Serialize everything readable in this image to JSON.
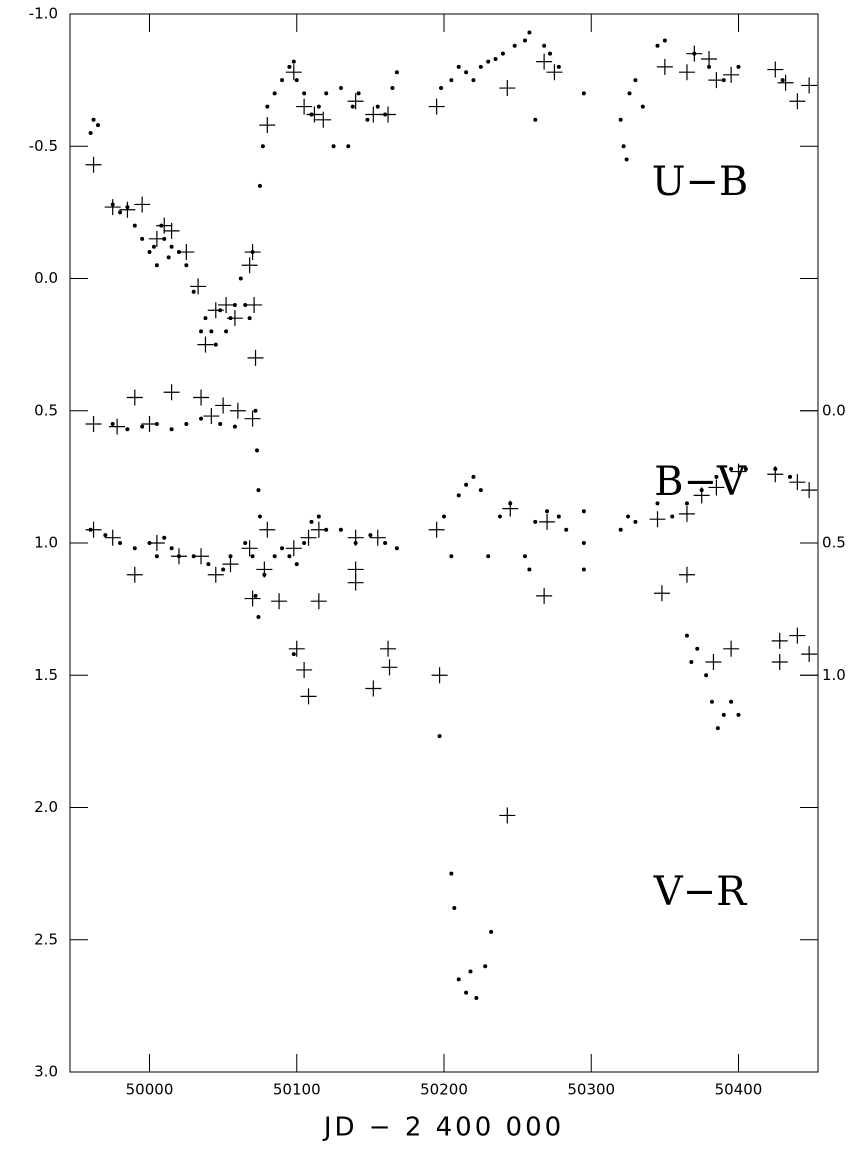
{
  "chart_data": {
    "type": "scatter",
    "xlabel": "JD − 2 400 000",
    "xlim": [
      49946,
      50454
    ],
    "xticks": [
      50000,
      50100,
      50200,
      50300,
      50400
    ],
    "ylim": [
      -1.0,
      3.0
    ],
    "inverted": true,
    "yticks": [
      {
        "value": -1.0,
        "label": "-1.0"
      },
      -0.5,
      {
        "value": 0,
        "label": "0.0"
      },
      0.5,
      {
        "value": 1,
        "label": "1.0"
      },
      1.5,
      {
        "value": 2,
        "label": "2.0"
      },
      2.5,
      {
        "value": 3,
        "label": "3.0"
      }
    ],
    "y2lim": [
      -1.5,
      2.5
    ],
    "y2ticks": [
      {
        "value": 0,
        "label": "0.0"
      },
      0.5,
      {
        "value": 1,
        "label": "1.0"
      }
    ],
    "color": "#000000",
    "series": [
      {
        "name": "U−B",
        "axis": "y",
        "dots": {
          "x": [
            49960,
            49962,
            49965,
            49975,
            49980,
            49985,
            49990,
            49995,
            50000,
            50003,
            50005,
            50008,
            50010,
            50013,
            50015,
            50020,
            50025,
            50030,
            50035,
            50038,
            50042,
            50045,
            50048,
            50052,
            50055,
            50058,
            50062,
            50065,
            50068,
            50070,
            50072,
            50073,
            50074,
            50075,
            50077,
            50080,
            50085,
            50090,
            50095,
            50098,
            50100,
            50105,
            50110,
            50115,
            50120,
            50125,
            50130,
            50135,
            50138,
            50142,
            50148,
            50155,
            50160,
            50165,
            50168,
            50198,
            50205,
            50210,
            50215,
            50220,
            50225,
            50230,
            50235,
            50240,
            50248,
            50255,
            50258,
            50262,
            50268,
            50272,
            50278,
            50295,
            50320,
            50322,
            50324,
            50326,
            50330,
            50335,
            50345,
            50350,
            50370,
            50380,
            50390,
            50400,
            50430
          ],
          "values": [
            -0.55,
            -0.6,
            -0.58,
            -0.28,
            -0.25,
            -0.27,
            -0.2,
            -0.15,
            -0.1,
            -0.12,
            -0.05,
            -0.2,
            -0.15,
            -0.08,
            -0.12,
            -0.1,
            -0.05,
            0.05,
            0.2,
            0.15,
            0.2,
            0.25,
            0.12,
            0.2,
            0.15,
            0.1,
            0.0,
            0.1,
            0.15,
            -0.1,
            0.5,
            0.65,
            0.8,
            -0.35,
            -0.5,
            -0.65,
            -0.7,
            -0.75,
            -0.8,
            -0.82,
            -0.75,
            -0.7,
            -0.62,
            -0.65,
            -0.7,
            -0.5,
            -0.72,
            -0.5,
            -0.65,
            -0.7,
            -0.6,
            -0.65,
            -0.62,
            -0.72,
            -0.78,
            -0.72,
            -0.75,
            -0.8,
            -0.78,
            -0.75,
            -0.8,
            -0.82,
            -0.83,
            -0.85,
            -0.88,
            -0.9,
            -0.93,
            -0.6,
            -0.88,
            -0.85,
            -0.8,
            -0.7,
            -0.6,
            -0.5,
            -0.45,
            -0.7,
            -0.75,
            -0.65,
            -0.88,
            -0.9,
            -0.85,
            -0.8,
            -0.75,
            -0.8,
            -0.75
          ]
        },
        "crosses": {
          "x": [
            49962,
            49975,
            49985,
            49995,
            50005,
            50010,
            50015,
            50025,
            50033,
            50038,
            50045,
            50052,
            50058,
            50068,
            50070,
            50071,
            50072,
            50080,
            50098,
            50105,
            50112,
            50118,
            50140,
            50152,
            50162,
            50195,
            50243,
            50268,
            50275,
            50350,
            50365,
            50370,
            50380,
            50385,
            50395,
            50425,
            50432,
            50440,
            50448
          ],
          "values": [
            -0.43,
            -0.27,
            -0.26,
            -0.28,
            -0.15,
            -0.2,
            -0.18,
            -0.1,
            0.03,
            0.25,
            0.12,
            0.1,
            0.15,
            -0.05,
            -0.1,
            0.1,
            0.3,
            -0.58,
            -0.78,
            -0.65,
            -0.62,
            -0.6,
            -0.67,
            -0.62,
            -0.62,
            -0.65,
            -0.72,
            -0.82,
            -0.78,
            -0.8,
            -0.78,
            -0.85,
            -0.83,
            -0.75,
            -0.77,
            -0.79,
            -0.74,
            -0.67,
            -0.73
          ]
        }
      },
      {
        "name": "B−V",
        "axis": "y2",
        "dots": {
          "x": [
            49960,
            49970,
            49980,
            49990,
            50000,
            50005,
            50010,
            50015,
            50020,
            50030,
            50040,
            50050,
            50055,
            50065,
            50070,
            50072,
            50074,
            50078,
            50085,
            50090,
            50095,
            50100,
            50105,
            50110,
            50115,
            50120,
            50130,
            50140,
            50150,
            50160,
            50168,
            50200,
            50205,
            50210,
            50215,
            50220,
            50225,
            50230,
            50238,
            50245,
            50255,
            50258,
            50262,
            50270,
            50278,
            50283,
            50295,
            50320,
            50325,
            50330,
            50345,
            50355,
            50365,
            50375,
            50385,
            50395,
            50405,
            50425,
            50435
          ],
          "values": [
            0.45,
            0.47,
            0.5,
            0.52,
            0.5,
            0.55,
            0.48,
            0.52,
            0.55,
            0.55,
            0.58,
            0.6,
            0.55,
            0.5,
            0.55,
            0.7,
            0.78,
            0.62,
            0.55,
            0.52,
            0.55,
            0.58,
            0.5,
            0.42,
            0.4,
            0.45,
            0.45,
            0.5,
            0.47,
            0.5,
            0.52,
            0.4,
            0.55,
            0.32,
            0.28,
            0.25,
            0.3,
            0.55,
            0.4,
            0.35,
            0.55,
            0.6,
            0.42,
            0.38,
            0.4,
            0.45,
            0.38,
            0.45,
            0.4,
            0.42,
            0.35,
            0.4,
            0.35,
            0.3,
            0.25,
            0.22,
            0.22,
            0.22,
            0.25
          ]
        },
        "crosses": {
          "x": [
            49962,
            49975,
            49990,
            50005,
            50020,
            50035,
            50045,
            50055,
            50068,
            50070,
            50078,
            50098,
            50108,
            50115,
            50140,
            50155,
            50195,
            50245,
            50270,
            50345,
            50365,
            50375,
            50385,
            50400,
            50425,
            50440,
            50448
          ],
          "values": [
            0.45,
            0.48,
            0.62,
            0.5,
            0.55,
            0.55,
            0.62,
            0.58,
            0.52,
            0.71,
            0.6,
            0.52,
            0.48,
            0.45,
            0.48,
            0.48,
            0.45,
            0.37,
            0.42,
            0.41,
            0.39,
            0.32,
            0.29,
            0.23,
            0.24,
            0.27,
            0.3
          ]
        }
      },
      {
        "name": "V−R",
        "axis": "y",
        "dots": {
          "x": [
            49975,
            49985,
            49995,
            50005,
            50015,
            50025,
            50035,
            50048,
            50058,
            50075,
            50098,
            50197,
            50205,
            50207,
            50210,
            50215,
            50218,
            50222,
            50228,
            50232,
            50295,
            50295,
            50365,
            50368,
            50372,
            50378,
            50382,
            50386,
            50390,
            50395,
            50400
          ],
          "values": [
            0.55,
            0.57,
            0.56,
            0.55,
            0.57,
            0.55,
            0.53,
            0.55,
            0.56,
            0.9,
            1.42,
            1.73,
            2.25,
            2.38,
            2.65,
            2.7,
            2.62,
            2.72,
            2.6,
            2.47,
            1.0,
            1.1,
            1.35,
            1.45,
            1.4,
            1.5,
            1.6,
            1.7,
            1.65,
            1.6,
            1.65
          ]
        },
        "crosses": {
          "x": [
            49962,
            49978,
            49990,
            50000,
            50015,
            50035,
            50042,
            50050,
            50060,
            50070,
            50080,
            50088,
            50100,
            50105,
            50108,
            50115,
            50140,
            50140,
            50152,
            50162,
            50163,
            50197,
            50243,
            50268,
            50348,
            50365,
            50383,
            50395,
            50428,
            50428,
            50440,
            50448
          ],
          "values": [
            0.55,
            0.56,
            0.45,
            0.55,
            0.43,
            0.45,
            0.52,
            0.48,
            0.5,
            0.53,
            0.95,
            1.22,
            1.4,
            1.48,
            1.58,
            1.22,
            1.1,
            1.15,
            1.55,
            1.4,
            1.47,
            1.5,
            2.03,
            1.2,
            1.19,
            1.12,
            1.45,
            1.4,
            1.37,
            1.45,
            1.35,
            1.42
          ]
        }
      }
    ]
  }
}
